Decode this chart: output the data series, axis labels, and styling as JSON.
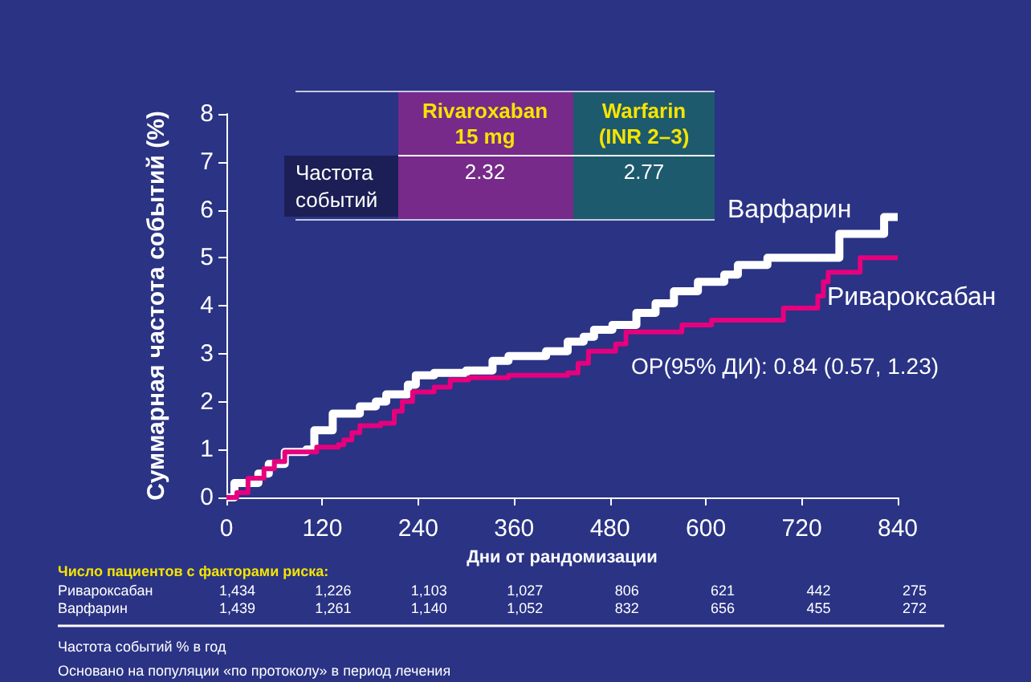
{
  "chart_data": {
    "type": "step",
    "ylabel": "Суммарная частота событий (%)",
    "xlabel": "Дни от рандомизации",
    "xlim": [
      0,
      840
    ],
    "xticks": [
      0,
      120,
      240,
      360,
      480,
      600,
      720,
      840
    ],
    "ylim": [
      0,
      8
    ],
    "yticks": [
      0,
      1,
      2,
      3,
      4,
      5,
      6,
      7,
      8
    ],
    "grid": false,
    "legend": false,
    "series": [
      {
        "name": "Варфарин",
        "color": "#ffffff",
        "x": [
          0,
          10,
          40,
          53,
          73,
          100,
          110,
          133,
          167,
          187,
          200,
          227,
          237,
          260,
          300,
          333,
          353,
          400,
          427,
          447,
          460,
          483,
          513,
          537,
          560,
          590,
          623,
          640,
          677,
          767,
          823,
          840
        ],
        "values": [
          0,
          0.3,
          0.5,
          0.7,
          0.95,
          1.0,
          1.4,
          1.75,
          1.9,
          2.0,
          2.15,
          2.35,
          2.55,
          2.6,
          2.65,
          2.85,
          2.95,
          3.05,
          3.25,
          3.35,
          3.5,
          3.6,
          3.85,
          4.05,
          4.3,
          4.5,
          4.65,
          4.85,
          5.0,
          5.5,
          5.85,
          5.85
        ]
      },
      {
        "name": "Ривароксабан",
        "color": "#e6007e",
        "x": [
          0,
          13,
          27,
          47,
          60,
          73,
          113,
          140,
          147,
          157,
          167,
          193,
          210,
          220,
          233,
          260,
          280,
          303,
          353,
          427,
          440,
          453,
          487,
          500,
          570,
          607,
          697,
          740,
          747,
          753,
          793,
          840
        ],
        "values": [
          0,
          0.1,
          0.4,
          0.6,
          0.75,
          0.95,
          1.05,
          1.1,
          1.2,
          1.35,
          1.5,
          1.55,
          1.8,
          2.0,
          2.2,
          2.3,
          2.45,
          2.5,
          2.55,
          2.6,
          2.8,
          3.05,
          3.2,
          3.45,
          3.6,
          3.7,
          3.95,
          4.2,
          4.5,
          4.7,
          5.0,
          5.0
        ]
      }
    ],
    "annotations": [
      "Rivaroxaban\n15 mg",
      "Warfarin\n(INR 2–3)",
      "Частота\nсобытий",
      "2.32",
      "2.77",
      "ОР(95% ДИ): 0.84 (0.57, 1.23)",
      "Число пациентов с факторами риска:",
      "Ривароксабан 1,434 1,226 1,103 1,027 806 621 442 275",
      "Варфарин 1,439 1,261 1,140 1,052 832 656 455 272",
      "Частота событий % в год",
      "Основано на популяции «по протоколу» в период лечения"
    ]
  }
}
